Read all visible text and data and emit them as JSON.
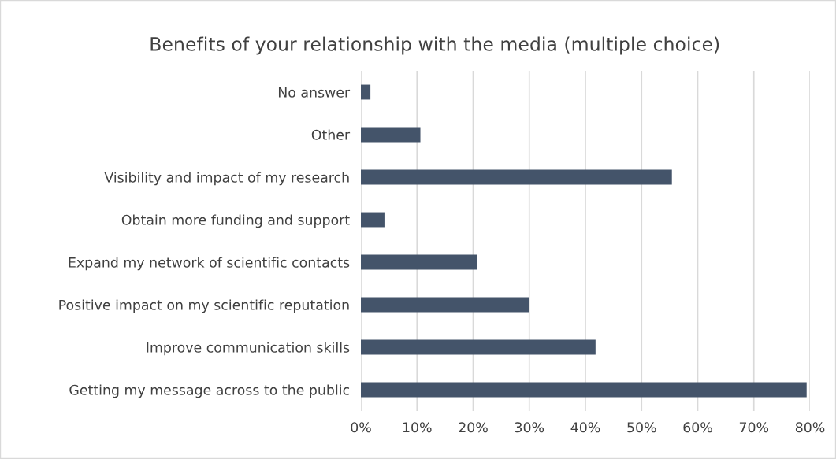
{
  "chart_data": {
    "type": "bar",
    "orientation": "horizontal",
    "title": "Benefits of your relationship with the media (multiple choice)",
    "categories": [
      "No answer",
      "Other",
      "Visibility and impact of my research",
      "Obtain more funding and support",
      "Expand my network of scientific contacts",
      "Positive impact on my scientific reputation",
      "Improve communication skills",
      "Getting my message across to the public"
    ],
    "values": [
      1.7,
      10.6,
      55.4,
      4.2,
      20.7,
      30.0,
      41.8,
      79.4
    ],
    "color": "#44546a",
    "xlim": [
      0,
      80
    ],
    "xticks": [
      {
        "value": 0,
        "label": "0%"
      },
      {
        "value": 10,
        "label": "10%"
      },
      {
        "value": 20,
        "label": "20%"
      },
      {
        "value": 30,
        "label": "30%"
      },
      {
        "value": 40,
        "label": "40%"
      },
      {
        "value": 50,
        "label": "50%"
      },
      {
        "value": 60,
        "label": "60%"
      },
      {
        "value": 70,
        "label": "70%"
      },
      {
        "value": 80,
        "label": "80%"
      }
    ],
    "grid": "x"
  }
}
